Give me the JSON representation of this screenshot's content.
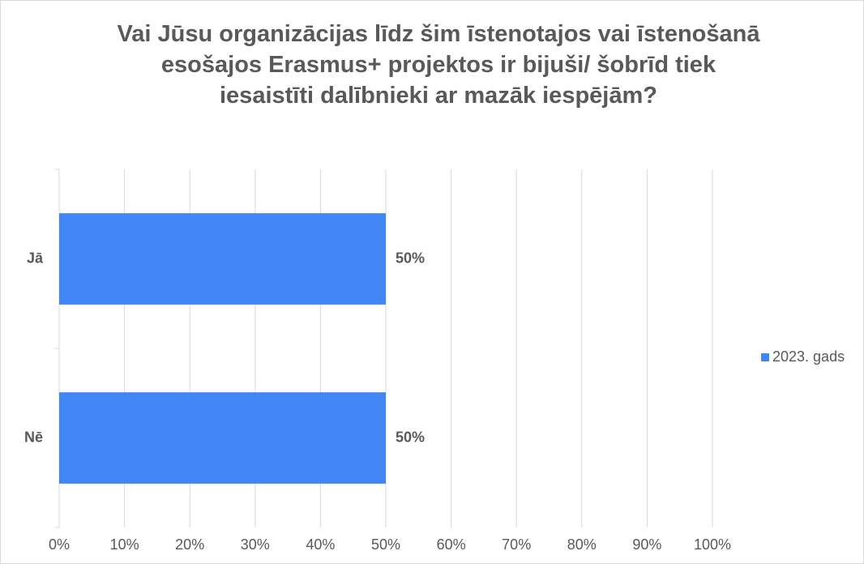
{
  "chart_data": {
    "type": "bar",
    "orientation": "horizontal",
    "title": "Vai Jūsu organizācijas līdz šim īstenotajos vai īstenošanā esošajos Erasmus+ projektos ir bijuši/ šobrīd tiek iesaistīti dalībnieki ar mazāk iespējām?",
    "categories": [
      "Jā",
      "Nē"
    ],
    "series": [
      {
        "name": "2023. gads",
        "color": "#4285f4",
        "values": [
          50,
          50
        ],
        "value_labels": [
          "50%",
          "50%"
        ]
      }
    ],
    "xlim": [
      0,
      100
    ],
    "xticks": [
      {
        "value": 0,
        "label": "0%"
      },
      {
        "value": 10,
        "label": "10%"
      },
      {
        "value": 20,
        "label": "20%"
      },
      {
        "value": 30,
        "label": "30%"
      },
      {
        "value": 40,
        "label": "40%"
      },
      {
        "value": 50,
        "label": "50%"
      },
      {
        "value": 60,
        "label": "60%"
      },
      {
        "value": 70,
        "label": "70%"
      },
      {
        "value": 80,
        "label": "80%"
      },
      {
        "value": 90,
        "label": "90%"
      },
      {
        "value": 100,
        "label": "100%"
      }
    ],
    "grid": true,
    "legend": "right"
  }
}
